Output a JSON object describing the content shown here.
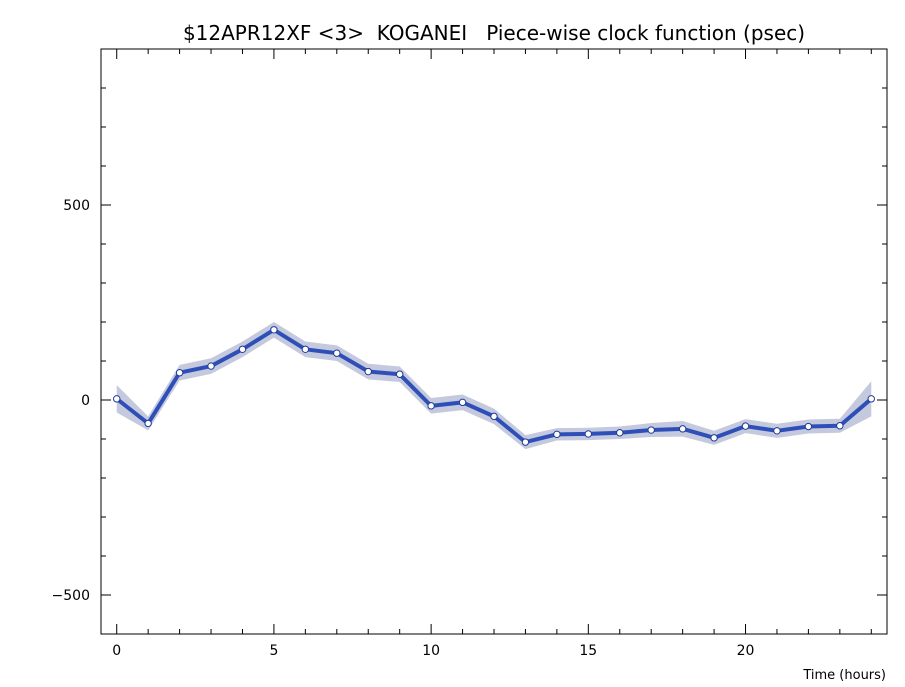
{
  "chart_data": {
    "type": "line",
    "title": "$12APR12XF <3>  KOGANEI   Piece-wise clock function (psec)",
    "xlabel": "Time (hours)",
    "ylabel": "",
    "xlim": [
      -0.5,
      24.5
    ],
    "ylim": [
      -600,
      900
    ],
    "xticks": [
      0,
      5,
      10,
      15,
      20
    ],
    "yticks": [
      -500,
      0,
      500
    ],
    "grid": false,
    "legend": "none",
    "colors": {
      "line": "#2f4fb8",
      "band": "#c5c9dd",
      "marker_fill": "#ffffff",
      "marker_edge": "#1f3a99"
    },
    "series": [
      {
        "x": [
          0,
          1,
          2,
          3,
          4,
          5,
          6,
          7,
          8,
          9,
          10,
          11,
          12,
          13,
          14,
          15,
          16,
          17,
          18,
          19,
          20,
          21,
          22,
          23,
          24
        ],
        "values": [
          3,
          -60,
          70,
          87,
          130,
          180,
          130,
          120,
          73,
          66,
          -15,
          -6,
          -42,
          -108,
          -88,
          -87,
          -84,
          -77,
          -74,
          -97,
          -67,
          -79,
          -68,
          -66,
          3
        ],
        "uncertainty": [
          35,
          18,
          20,
          20,
          20,
          20,
          20,
          20,
          20,
          20,
          20,
          20,
          20,
          18,
          16,
          16,
          16,
          18,
          20,
          18,
          18,
          18,
          18,
          18,
          45
        ]
      }
    ]
  }
}
